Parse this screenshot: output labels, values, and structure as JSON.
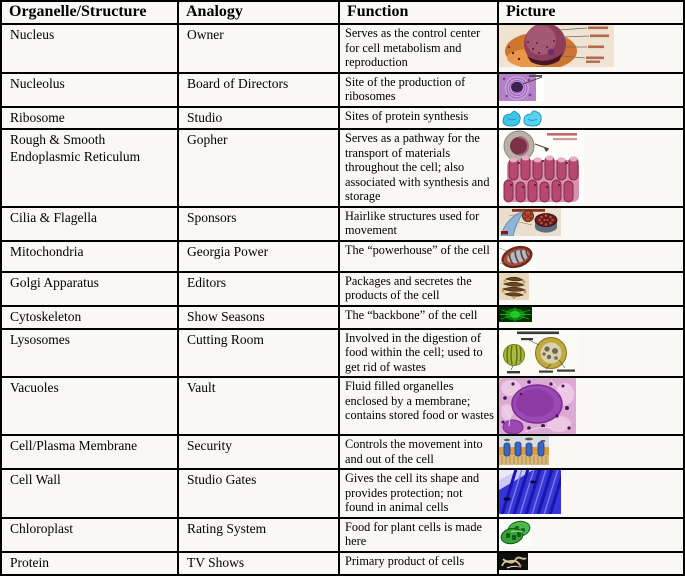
{
  "table": {
    "headers": [
      "Organelle/Structure",
      "Analogy",
      "Function",
      "Picture"
    ],
    "rows": [
      {
        "organelle": "Nucleus",
        "analogy": "Owner",
        "function": "Serves as the control center for cell metabolism and reproduction",
        "picture": "nucleus-cutaway-illustration"
      },
      {
        "organelle": "Nucleolus",
        "analogy": "Board of Directors",
        "function": "Site of the production of ribosomes",
        "picture": "nucleolus-micrograph"
      },
      {
        "organelle": "Ribosome",
        "analogy": "Studio",
        "function": "Sites of protein synthesis",
        "picture": "ribosome-model"
      },
      {
        "organelle": "Rough & Smooth Endoplasmic Reticulum",
        "analogy": "Gopher",
        "function": "Serves as a pathway for the transport of materials throughout the cell; also associated with synthesis and storage",
        "picture": "endoplasmic-reticulum-illustration"
      },
      {
        "organelle": "Cilia & Flagella",
        "analogy": "Sponsors",
        "function": "Hairlike structures used for movement",
        "picture": "cilia-flagella-cross-section"
      },
      {
        "organelle": "Mitochondria",
        "analogy": "Georgia Power",
        "function": "The “powerhouse” of the cell",
        "picture": "mitochondrion-cutaway"
      },
      {
        "organelle": "Golgi Apparatus",
        "analogy": "Editors",
        "function": "Packages and secretes the products of the cell",
        "picture": "golgi-apparatus-illustration"
      },
      {
        "organelle": "Cytoskeleton",
        "analogy": "Show Seasons",
        "function": "The “backbone” of the cell",
        "picture": "cytoskeleton-fluorescence-micrograph"
      },
      {
        "organelle": "Lysosomes",
        "analogy": "Cutting Room",
        "function": "Involved in the digestion of food within the cell; used to get rid of wastes",
        "picture": "lysosome-diagram"
      },
      {
        "organelle": "Vacuoles",
        "analogy": "Vault",
        "function": "Fluid filled organelles enclosed by a membrane; contains stored food or wastes",
        "picture": "vacuole-micrograph"
      },
      {
        "organelle": "Cell/Plasma Membrane",
        "analogy": "Security",
        "function": "Controls the movement into and out of the cell",
        "picture": "plasma-membrane-illustration"
      },
      {
        "organelle": "Cell Wall",
        "analogy": "Studio Gates",
        "function": "Gives the cell its shape and provides protection; not found in animal cells",
        "picture": "cell-wall-micrograph"
      },
      {
        "organelle": "Chloroplast",
        "analogy": "Rating System",
        "function": "Food for plant cells is made here",
        "picture": "chloroplast-illustration"
      },
      {
        "organelle": "Protein",
        "analogy": "TV Shows",
        "function": "Primary product of cells",
        "picture": "protein-structure-model"
      }
    ]
  },
  "colors": {
    "border": "#000000",
    "cell_background": "#faf8f5",
    "text": "#000000"
  }
}
